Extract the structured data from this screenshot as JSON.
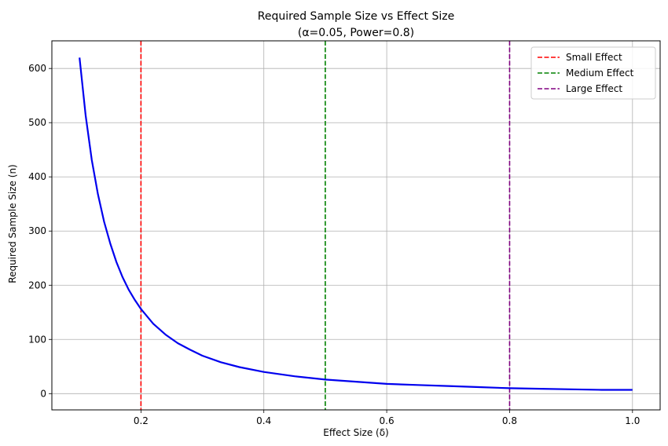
{
  "chart_data": {
    "type": "line",
    "title": "Required Sample Size vs Effect Size",
    "subtitle": "(α=0.05, Power=0.8)",
    "xlabel": "Effect Size (δ)",
    "ylabel": "Required Sample Size (n)",
    "xlim": [
      0.055,
      1.045
    ],
    "ylim": [
      -30,
      651
    ],
    "xticks": [
      0.2,
      0.4,
      0.6,
      0.8,
      1.0
    ],
    "xtick_labels": [
      "0.2",
      "0.4",
      "0.6",
      "0.8",
      "1.0"
    ],
    "yticks": [
      0,
      100,
      200,
      300,
      400,
      500,
      600
    ],
    "ytick_labels": [
      "0",
      "100",
      "200",
      "300",
      "400",
      "500",
      "600"
    ],
    "grid": true,
    "legend_position": "top-right",
    "series": [
      {
        "color": "#0000ee",
        "x": [
          0.1,
          0.11,
          0.12,
          0.13,
          0.14,
          0.15,
          0.16,
          0.17,
          0.18,
          0.19,
          0.2,
          0.22,
          0.24,
          0.26,
          0.28,
          0.3,
          0.33,
          0.36,
          0.4,
          0.45,
          0.5,
          0.55,
          0.6,
          0.65,
          0.7,
          0.75,
          0.8,
          0.85,
          0.9,
          0.95,
          1.0
        ],
        "values": [
          620,
          513,
          431,
          368,
          317,
          277,
          243,
          215,
          192,
          173,
          156,
          129,
          109,
          93,
          81,
          70,
          58,
          49,
          40,
          32,
          26,
          22,
          18,
          16,
          14,
          12,
          10,
          9,
          8,
          7,
          7
        ]
      }
    ],
    "reference_lines": [
      {
        "name": "Small Effect",
        "x": 0.2,
        "color": "#ff0000"
      },
      {
        "name": "Medium Effect",
        "x": 0.5,
        "color": "#008000"
      },
      {
        "name": "Large Effect",
        "x": 0.8,
        "color": "#800080"
      }
    ]
  }
}
